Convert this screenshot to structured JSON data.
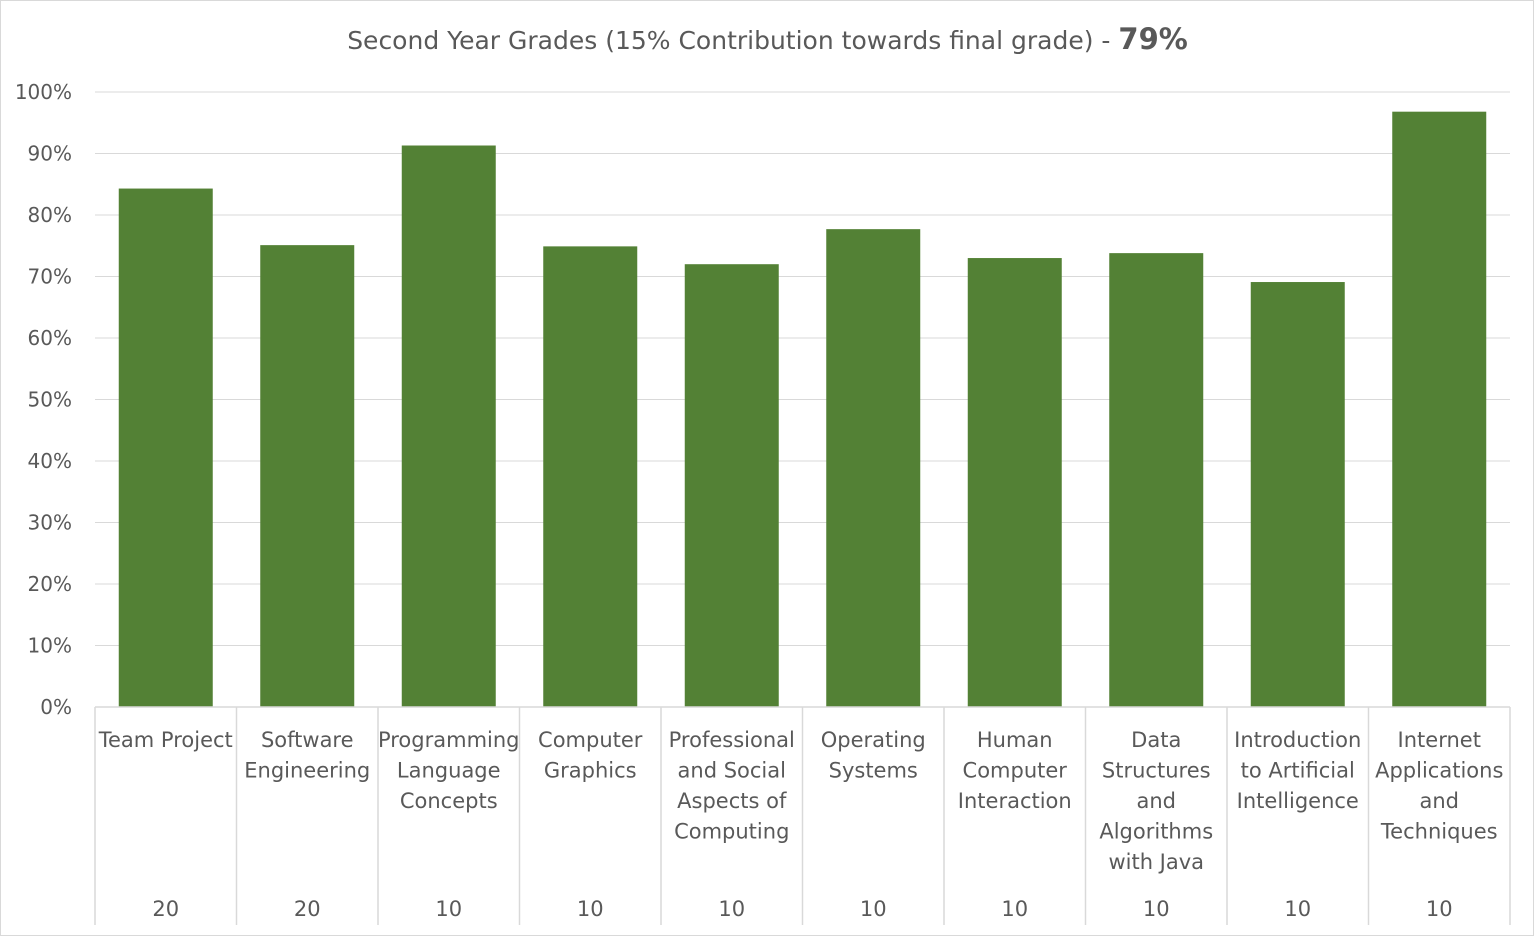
{
  "colors": {
    "bar": "#538135",
    "grid": "#d9d9d9",
    "text": "#595959",
    "frame": "#d9d9d9"
  },
  "chart_data": {
    "type": "bar",
    "title": "Second Year Grades (15% Contribution towards final grade) -",
    "title_emphasis": "79%",
    "xlabel": "",
    "ylabel": "",
    "ylim": [
      0,
      100
    ],
    "yticks": [
      0,
      10,
      20,
      30,
      40,
      50,
      60,
      70,
      80,
      90,
      100
    ],
    "ytick_labels": [
      "0%",
      "10%",
      "20%",
      "30%",
      "40%",
      "50%",
      "60%",
      "70%",
      "80%",
      "90%",
      "100%"
    ],
    "grid": true,
    "legend": "none",
    "categories": [
      [
        "Team Project"
      ],
      [
        "Software",
        "Engineering"
      ],
      [
        "Programming",
        "Language",
        "Concepts"
      ],
      [
        "Computer",
        "Graphics"
      ],
      [
        "Professional",
        "and Social",
        "Aspects of",
        "Computing"
      ],
      [
        "Operating",
        "Systems"
      ],
      [
        "Human",
        "Computer",
        "Interaction"
      ],
      [
        "Data",
        "Structures",
        "and",
        "Algorithms",
        "with Java"
      ],
      [
        "Introduction",
        "to Artificial",
        "Intelligence"
      ],
      [
        "Internet",
        "Applications",
        "and",
        "Techniques"
      ]
    ],
    "credits": [
      "20",
      "20",
      "10",
      "10",
      "10",
      "10",
      "10",
      "10",
      "10",
      "10"
    ],
    "values": [
      84.3,
      75.1,
      91.3,
      74.9,
      72.0,
      77.7,
      73.0,
      73.8,
      69.1,
      96.8
    ]
  }
}
